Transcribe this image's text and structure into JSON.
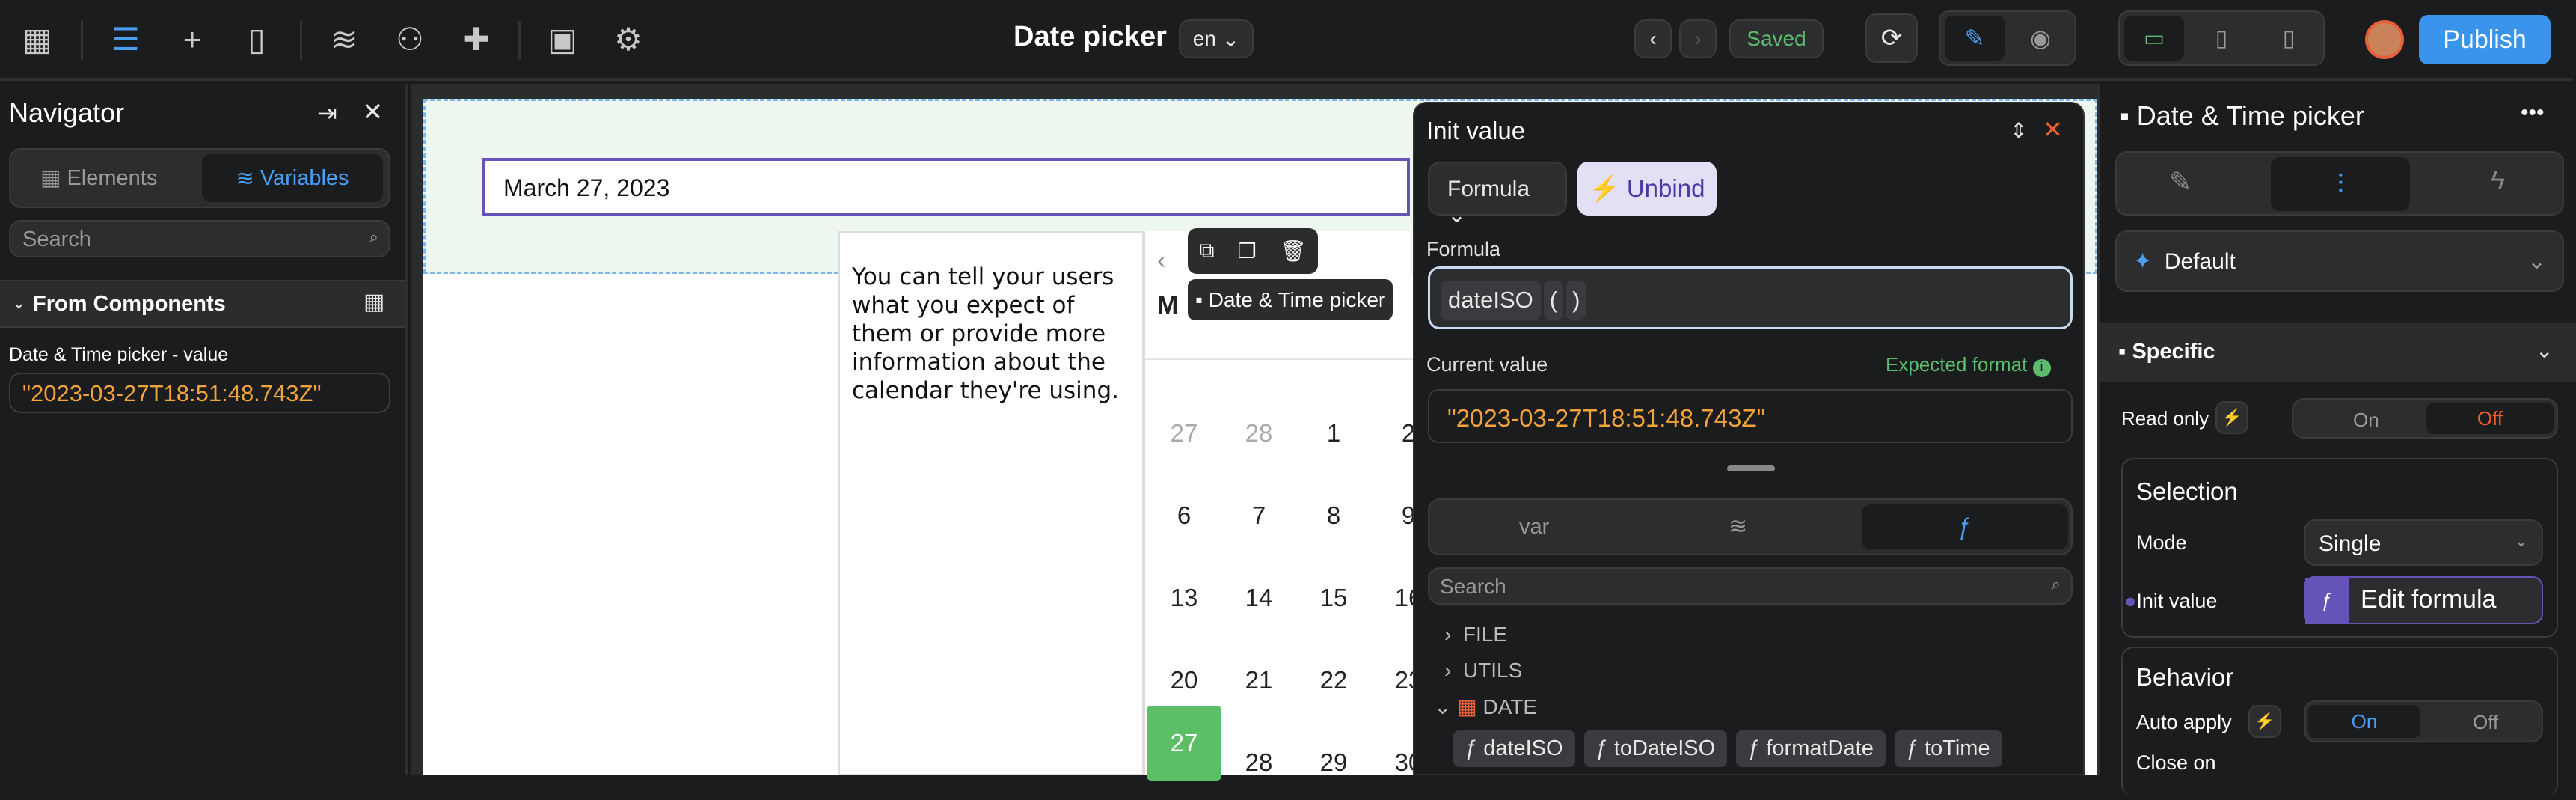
{
  "topbar": {
    "title": "Date picker",
    "lang": "en",
    "saved": "Saved",
    "publish": "Publish",
    "icons": [
      "apps-icon",
      "navigator-icon",
      "add-icon",
      "pages-icon",
      "data-icon",
      "users-icon",
      "plugins-icon",
      "terminal-icon",
      "settings-icon"
    ]
  },
  "navigator": {
    "title": "Navigator",
    "tabs": [
      "Elements",
      "Variables"
    ],
    "search_placeholder": "Search",
    "section": "From Components",
    "var_label": "Date & Time picker - value",
    "var_value": "\"2023-03-27T18:51:48.743Z\""
  },
  "canvas": {
    "input_value": "March 27, 2023",
    "help_text": "You can tell your users what you expect of them or provide more information about the calendar they're using.",
    "month_initial": "M",
    "tag": "Date & Time picker",
    "days": [
      [
        "27",
        "28",
        "1",
        "2"
      ],
      [
        "6",
        "7",
        "8",
        "9"
      ],
      [
        "13",
        "14",
        "15",
        "16"
      ],
      [
        "20",
        "21",
        "22",
        "23"
      ],
      [
        "27",
        "28",
        "29",
        "30"
      ]
    ],
    "selected_day": "27"
  },
  "popup": {
    "title": "Init value",
    "mode": "Formula",
    "unbind": "Unbind",
    "formula_label": "Formula",
    "formula_fn": "dateISO",
    "paren_open": "(",
    "paren_close": ")",
    "current_label": "Current value",
    "expected": "Expected format",
    "current_value": "\"2023-03-27T18:51:48.743Z\"",
    "tabs": [
      "var",
      "database",
      "ƒ"
    ],
    "search_placeholder": "Search",
    "groups": [
      "FILE",
      "UTILS",
      "DATE"
    ],
    "functions": [
      "dateISO",
      "toDateISO",
      "formatDate",
      "toTime"
    ]
  },
  "panel": {
    "title": "Date & Time picker",
    "preset": "Default",
    "section": "Specific",
    "read_only": "Read only",
    "on": "On",
    "off": "Off",
    "selection": "Selection",
    "mode_label": "Mode",
    "mode_value": "Single",
    "init_label": "Init value",
    "edit_formula": "Edit formula",
    "behavior": "Behavior",
    "auto_apply": "Auto apply",
    "close_on": "Close on"
  },
  "colors": {
    "accent": "#4a9ff5",
    "publish": "#3b94ec",
    "saved": "#5dbb6e",
    "orange": "#f2a33a",
    "purple": "#6553b8",
    "selected_day": "#5cbf66",
    "off": "#f0602f"
  }
}
